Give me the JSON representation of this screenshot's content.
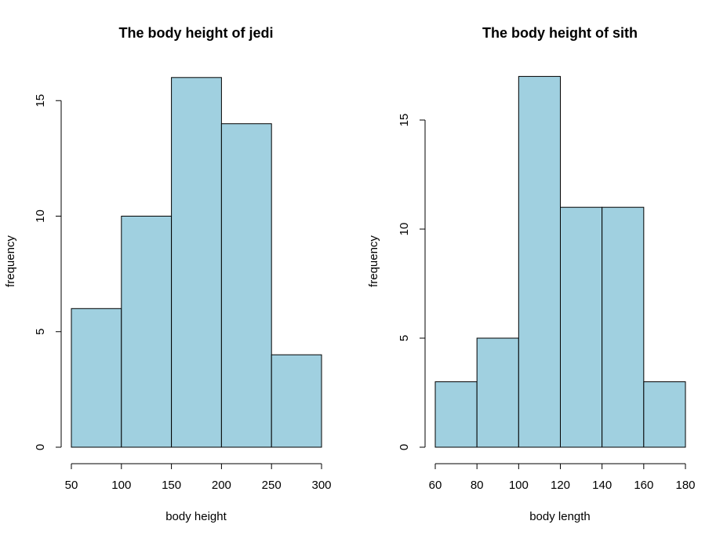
{
  "colors": {
    "bar_fill": "#a0d0e0",
    "bar_stroke": "#000000"
  },
  "chart_data": [
    {
      "type": "bar",
      "subtype": "histogram",
      "title": "The body height of jedi",
      "xlabel": "body height",
      "ylabel": "frequency",
      "bins": [
        [
          50,
          100
        ],
        [
          100,
          150
        ],
        [
          150,
          200
        ],
        [
          200,
          250
        ],
        [
          250,
          300
        ]
      ],
      "values": [
        6,
        10,
        16,
        14,
        4
      ],
      "xlim": [
        50,
        300
      ],
      "ylim": [
        0,
        16
      ],
      "x_ticks": [
        50,
        100,
        150,
        200,
        250,
        300
      ],
      "y_ticks": [
        0,
        5,
        10,
        15
      ],
      "grid": false
    },
    {
      "type": "bar",
      "subtype": "histogram",
      "title": "The body height of sith",
      "xlabel": "body length",
      "ylabel": "frequency",
      "bins": [
        [
          60,
          80
        ],
        [
          80,
          100
        ],
        [
          100,
          120
        ],
        [
          120,
          140
        ],
        [
          140,
          160
        ],
        [
          160,
          180
        ]
      ],
      "values": [
        3,
        5,
        17,
        11,
        11,
        3
      ],
      "xlim": [
        60,
        180
      ],
      "ylim": [
        0,
        17
      ],
      "x_ticks": [
        60,
        80,
        100,
        120,
        140,
        160,
        180
      ],
      "y_ticks": [
        0,
        5,
        10,
        15
      ],
      "grid": false
    }
  ]
}
